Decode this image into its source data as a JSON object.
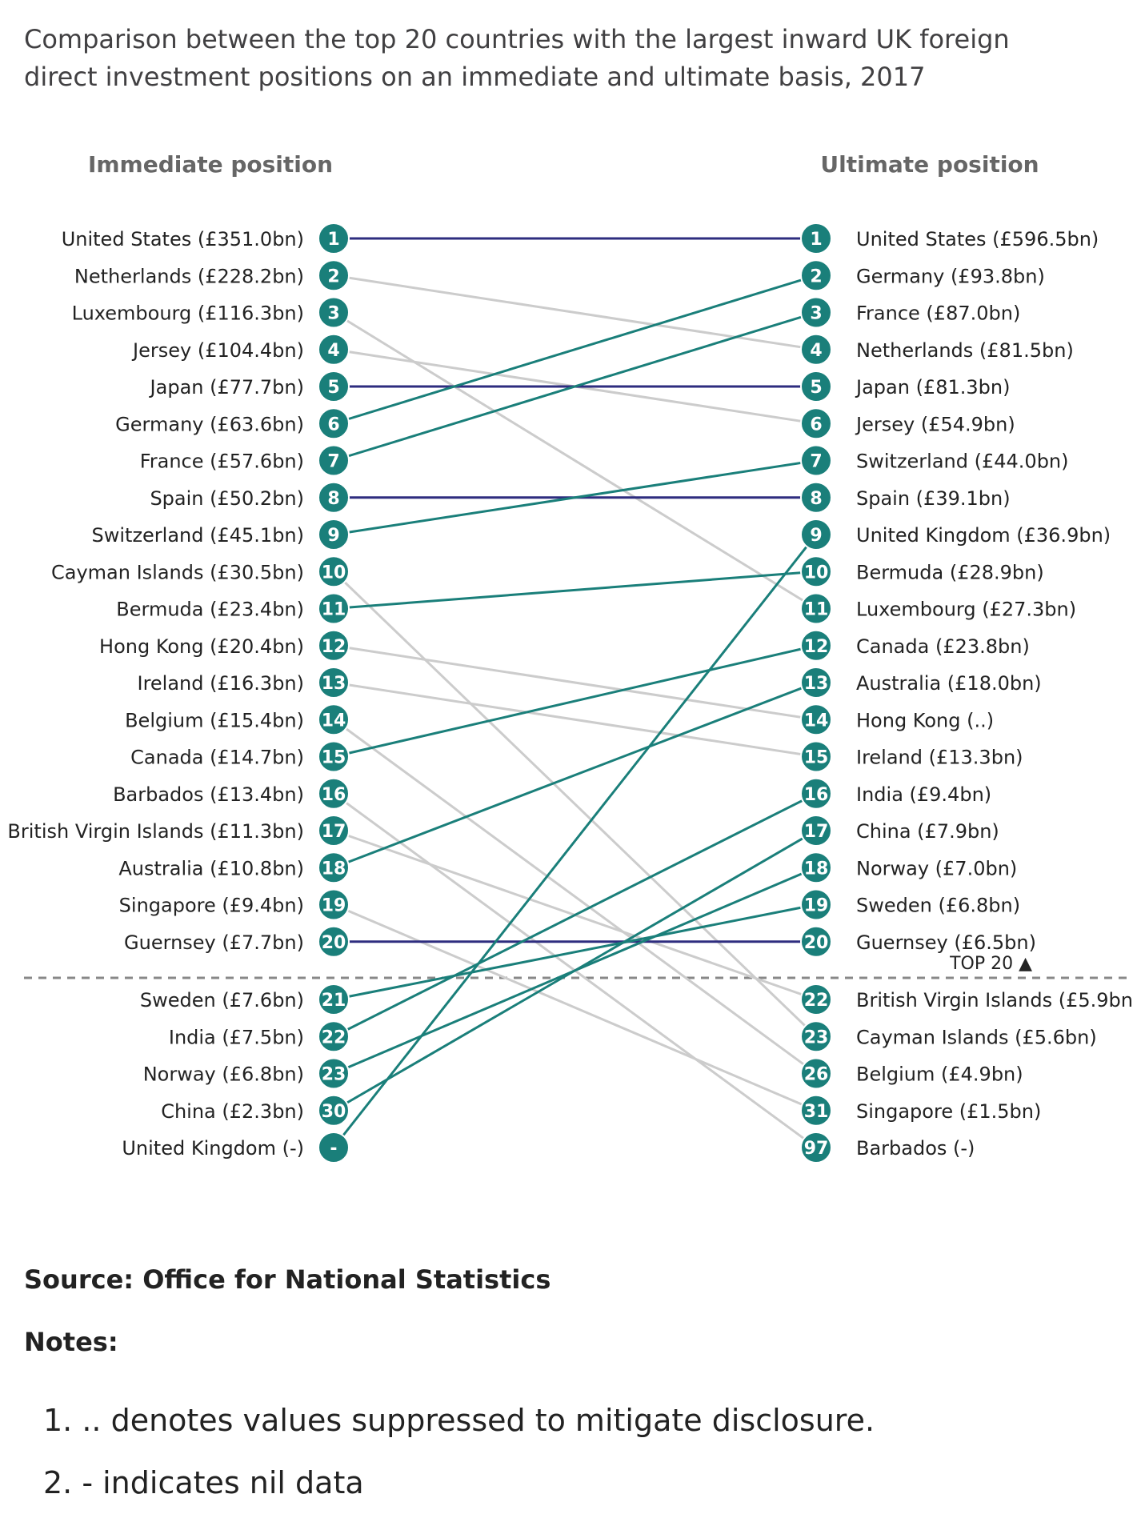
{
  "title": "Comparison between the top 20 countries with the largest inward UK foreign direct investment positions on an immediate and ultimate basis, 2017",
  "source": "Source: Office for National Statistics",
  "notes_heading": "Notes:",
  "notes": [
    "1. .. denotes values suppressed to mitigate disclosure.",
    "2. - indicates nil data"
  ],
  "colors": {
    "rank_circle": "#1a7f7a",
    "same_rank_line": "#2e2d7f",
    "rank_up_line": "#1a7f7a",
    "rank_down_line": "#cccccc",
    "divider": "#888888"
  },
  "chart_data": {
    "type": "slope",
    "left_header": "Immediate position",
    "right_header": "Ultimate position",
    "top_marker_label": "TOP 20 ▲",
    "left": [
      {
        "label": "United States (£351.0bn)",
        "rank": "1",
        "country": "United States"
      },
      {
        "label": "Netherlands (£228.2bn)",
        "rank": "2",
        "country": "Netherlands"
      },
      {
        "label": "Luxembourg (£116.3bn)",
        "rank": "3",
        "country": "Luxembourg"
      },
      {
        "label": "Jersey (£104.4bn)",
        "rank": "4",
        "country": "Jersey"
      },
      {
        "label": "Japan (£77.7bn)",
        "rank": "5",
        "country": "Japan"
      },
      {
        "label": "Germany (£63.6bn)",
        "rank": "6",
        "country": "Germany"
      },
      {
        "label": "France (£57.6bn)",
        "rank": "7",
        "country": "France"
      },
      {
        "label": "Spain (£50.2bn)",
        "rank": "8",
        "country": "Spain"
      },
      {
        "label": "Switzerland (£45.1bn)",
        "rank": "9",
        "country": "Switzerland"
      },
      {
        "label": "Cayman Islands (£30.5bn)",
        "rank": "10",
        "country": "Cayman Islands"
      },
      {
        "label": "Bermuda (£23.4bn)",
        "rank": "11",
        "country": "Bermuda"
      },
      {
        "label": "Hong Kong (£20.4bn)",
        "rank": "12",
        "country": "Hong Kong"
      },
      {
        "label": "Ireland (£16.3bn)",
        "rank": "13",
        "country": "Ireland"
      },
      {
        "label": "Belgium (£15.4bn)",
        "rank": "14",
        "country": "Belgium"
      },
      {
        "label": "Canada (£14.7bn)",
        "rank": "15",
        "country": "Canada"
      },
      {
        "label": "Barbados (£13.4bn)",
        "rank": "16",
        "country": "Barbados"
      },
      {
        "label": "British Virgin Islands (£11.3bn)",
        "rank": "17",
        "country": "British Virgin Islands"
      },
      {
        "label": "Australia (£10.8bn)",
        "rank": "18",
        "country": "Australia"
      },
      {
        "label": "Singapore (£9.4bn)",
        "rank": "19",
        "country": "Singapore"
      },
      {
        "label": "Guernsey (£7.7bn)",
        "rank": "20",
        "country": "Guernsey"
      },
      {
        "label": "Sweden (£7.6bn)",
        "rank": "21",
        "country": "Sweden"
      },
      {
        "label": "India (£7.5bn)",
        "rank": "22",
        "country": "India"
      },
      {
        "label": "Norway (£6.8bn)",
        "rank": "23",
        "country": "Norway"
      },
      {
        "label": "China (£2.3bn)",
        "rank": "30",
        "country": "China"
      },
      {
        "label": "United Kingdom (-)",
        "rank": "-",
        "country": "United Kingdom"
      }
    ],
    "right": [
      {
        "label": "United States (£596.5bn)",
        "rank": "1",
        "country": "United States"
      },
      {
        "label": "Germany (£93.8bn)",
        "rank": "2",
        "country": "Germany"
      },
      {
        "label": "France (£87.0bn)",
        "rank": "3",
        "country": "France"
      },
      {
        "label": "Netherlands (£81.5bn)",
        "rank": "4",
        "country": "Netherlands"
      },
      {
        "label": "Japan (£81.3bn)",
        "rank": "5",
        "country": "Japan"
      },
      {
        "label": "Jersey (£54.9bn)",
        "rank": "6",
        "country": "Jersey"
      },
      {
        "label": "Switzerland (£44.0bn)",
        "rank": "7",
        "country": "Switzerland"
      },
      {
        "label": "Spain (£39.1bn)",
        "rank": "8",
        "country": "Spain"
      },
      {
        "label": "United Kingdom (£36.9bn)",
        "rank": "9",
        "country": "United Kingdom"
      },
      {
        "label": "Bermuda (£28.9bn)",
        "rank": "10",
        "country": "Bermuda"
      },
      {
        "label": "Luxembourg (£27.3bn)",
        "rank": "11",
        "country": "Luxembourg"
      },
      {
        "label": "Canada (£23.8bn)",
        "rank": "12",
        "country": "Canada"
      },
      {
        "label": "Australia (£18.0bn)",
        "rank": "13",
        "country": "Australia"
      },
      {
        "label": "Hong Kong (..)",
        "rank": "14",
        "country": "Hong Kong"
      },
      {
        "label": "Ireland (£13.3bn)",
        "rank": "15",
        "country": "Ireland"
      },
      {
        "label": "India (£9.4bn)",
        "rank": "16",
        "country": "India"
      },
      {
        "label": "China (£7.9bn)",
        "rank": "17",
        "country": "China"
      },
      {
        "label": "Norway (£7.0bn)",
        "rank": "18",
        "country": "Norway"
      },
      {
        "label": "Sweden (£6.8bn)",
        "rank": "19",
        "country": "Sweden"
      },
      {
        "label": "Guernsey (£6.5bn)",
        "rank": "20",
        "country": "Guernsey"
      },
      {
        "label": "British Virgin Islands (£5.9bn)",
        "rank": "22",
        "country": "British Virgin Islands"
      },
      {
        "label": "Cayman Islands (£5.6bn)",
        "rank": "23",
        "country": "Cayman Islands"
      },
      {
        "label": "Belgium (£4.9bn)",
        "rank": "26",
        "country": "Belgium"
      },
      {
        "label": "Singapore (£1.5bn)",
        "rank": "31",
        "country": "Singapore"
      },
      {
        "label": "Barbados (-)",
        "rank": "97",
        "country": "Barbados"
      }
    ]
  }
}
